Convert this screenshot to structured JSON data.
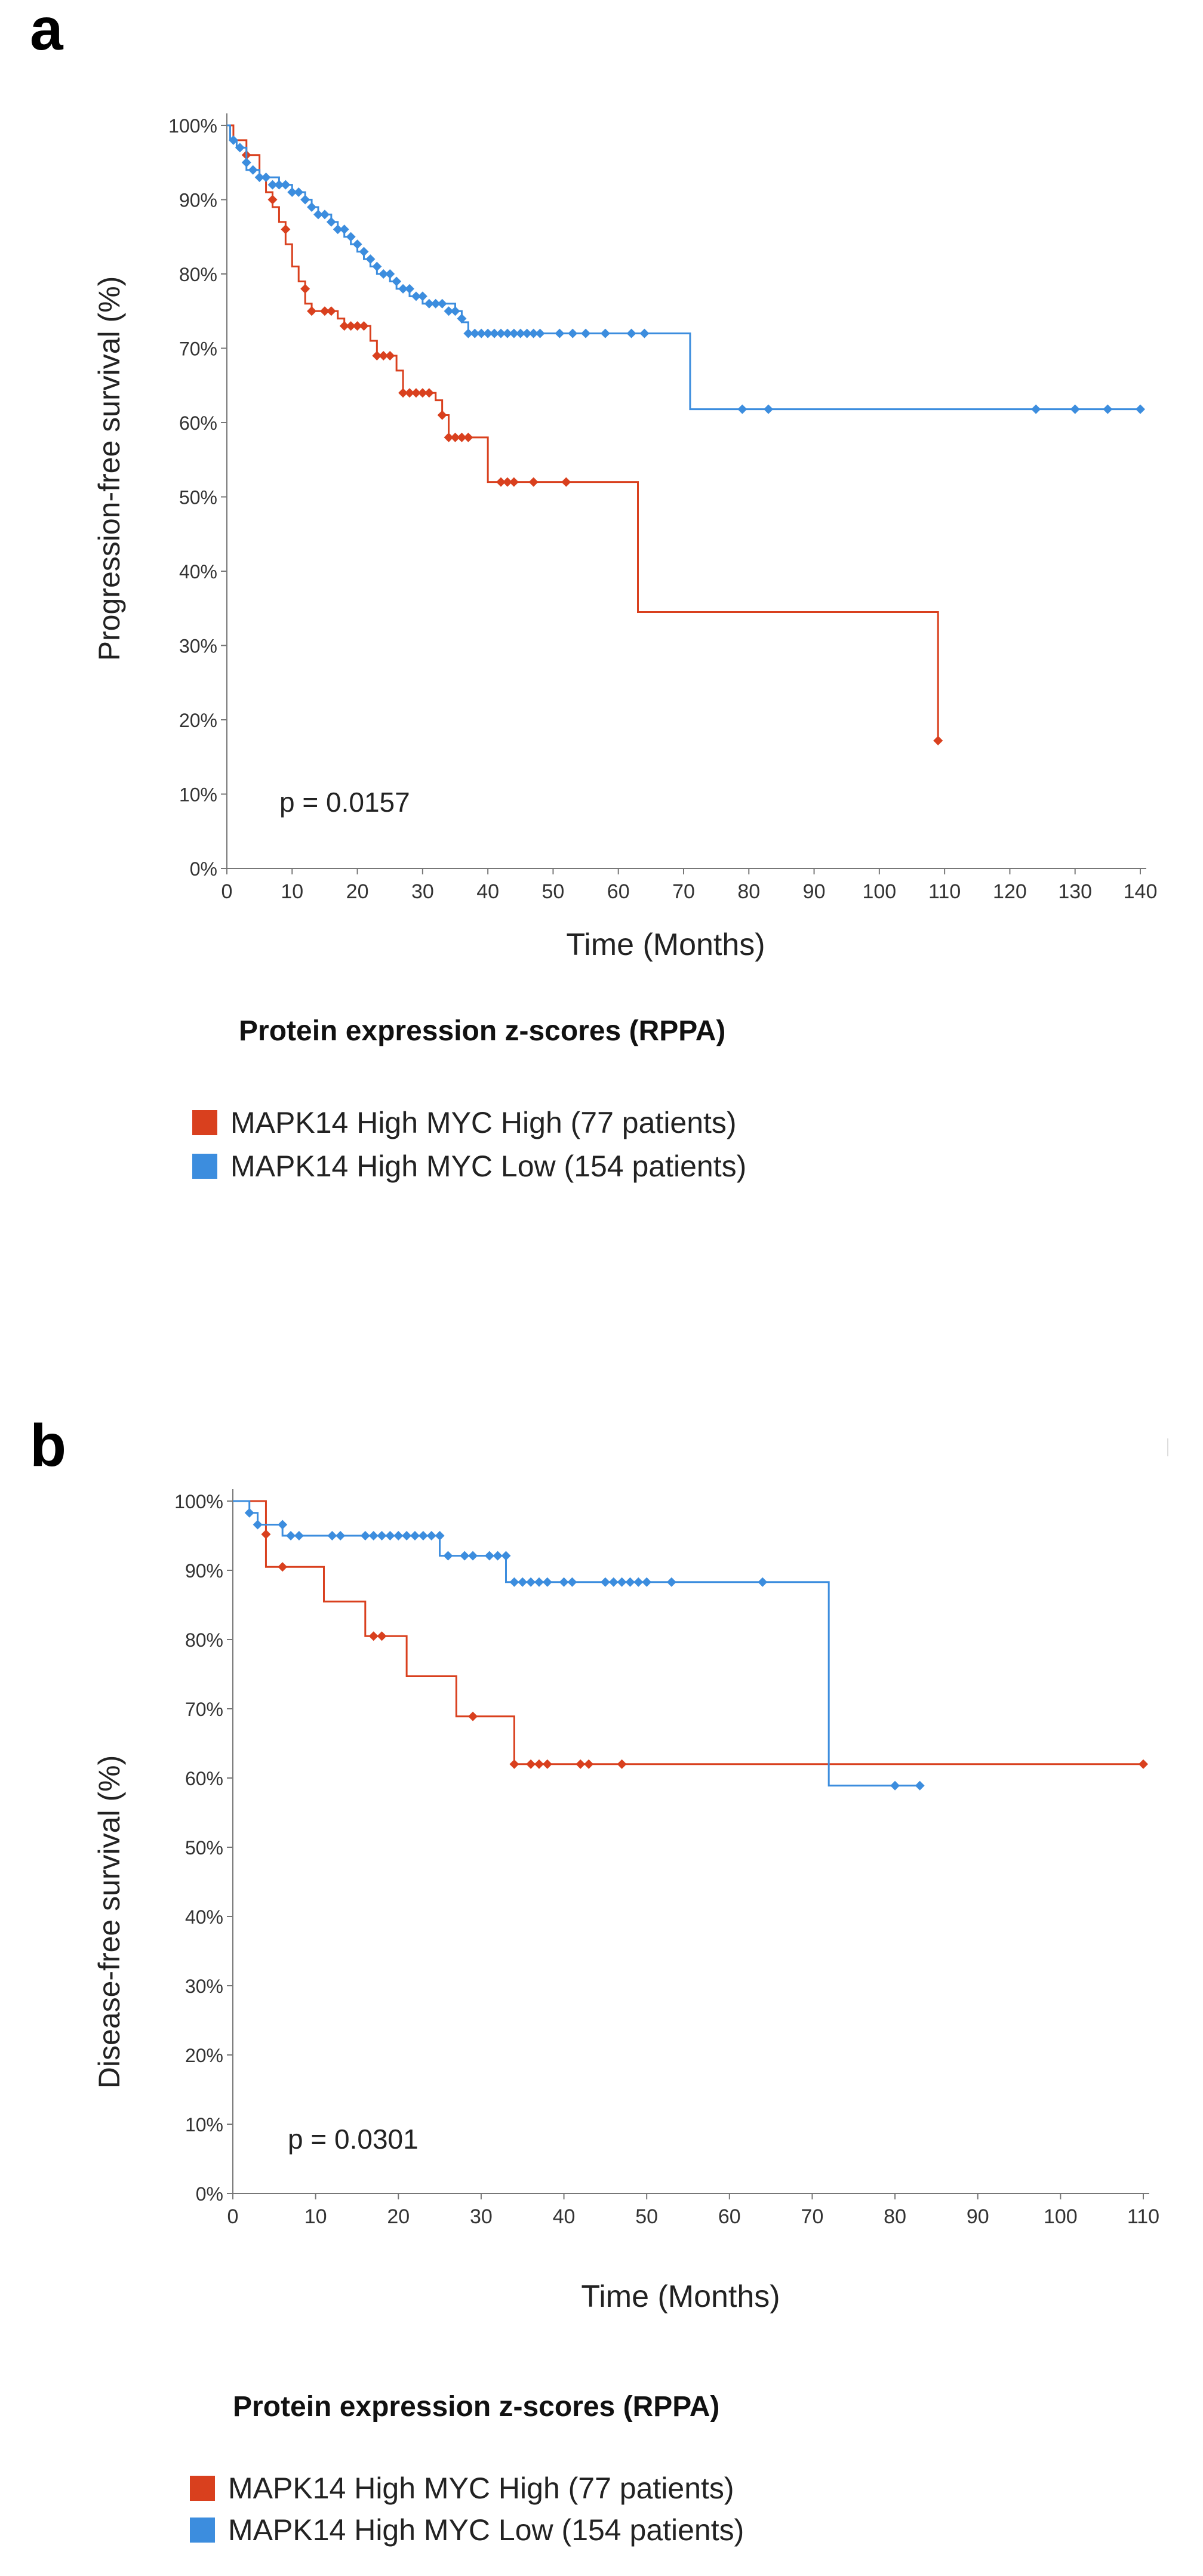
{
  "colors": {
    "high": "#D9401E",
    "low": "#3C8DDE",
    "axis": "#777777"
  },
  "panels": [
    {
      "letter": "a"
    },
    {
      "letter": "b"
    }
  ],
  "chart_data": [
    {
      "type": "line",
      "title": "",
      "xlabel": "Time (Months)",
      "ylabel": "Progression-free survival (%)",
      "xlim": [
        0,
        140
      ],
      "ylim": [
        0,
        100
      ],
      "xticks": [
        "0",
        "10",
        "20",
        "30",
        "40",
        "50",
        "60",
        "70",
        "80",
        "90",
        "100",
        "110",
        "120",
        "130",
        "140"
      ],
      "yticks": [
        "0%",
        "10%",
        "20%",
        "30%",
        "40%",
        "50%",
        "60%",
        "70%",
        "80%",
        "90%",
        "100%"
      ],
      "annotation": "p = 0.0157",
      "legend_title": "Protein expression z-scores (RPPA)",
      "series": [
        {
          "name": "MAPK14 High MYC High (77 patients)",
          "color": "#D9401E",
          "steps": [
            [
              0,
              100
            ],
            [
              1,
              98
            ],
            [
              3,
              96
            ],
            [
              5,
              93
            ],
            [
              6,
              91
            ],
            [
              7,
              89
            ],
            [
              8,
              87
            ],
            [
              9,
              84
            ],
            [
              10,
              81
            ],
            [
              11,
              79
            ],
            [
              12,
              76
            ],
            [
              13,
              75
            ],
            [
              17,
              74
            ],
            [
              18,
              73
            ],
            [
              22,
              71
            ],
            [
              23,
              69
            ],
            [
              26,
              67
            ],
            [
              27,
              64
            ],
            [
              32,
              63
            ],
            [
              33,
              61
            ],
            [
              34,
              58
            ],
            [
              38,
              58
            ],
            [
              40,
              52
            ],
            [
              63,
              52
            ],
            [
              63,
              34.5
            ],
            [
              109,
              34.5
            ],
            [
              109,
              17.2
            ]
          ],
          "censored": [
            [
              3,
              96
            ],
            [
              7,
              90
            ],
            [
              9,
              86
            ],
            [
              12,
              78
            ],
            [
              13,
              75
            ],
            [
              15,
              75
            ],
            [
              16,
              75
            ],
            [
              18,
              73
            ],
            [
              19,
              73
            ],
            [
              20,
              73
            ],
            [
              21,
              73
            ],
            [
              23,
              69
            ],
            [
              24,
              69
            ],
            [
              25,
              69
            ],
            [
              27,
              64
            ],
            [
              28,
              64
            ],
            [
              29,
              64
            ],
            [
              30,
              64
            ],
            [
              31,
              64
            ],
            [
              33,
              61
            ],
            [
              34,
              58
            ],
            [
              35,
              58
            ],
            [
              36,
              58
            ],
            [
              37,
              58
            ],
            [
              42,
              52
            ],
            [
              43,
              52
            ],
            [
              44,
              52
            ],
            [
              47,
              52
            ],
            [
              52,
              52
            ],
            [
              109,
              17.2
            ]
          ]
        },
        {
          "name": "MAPK14 High MYC Low (154 patients)",
          "color": "#3C8DDE",
          "steps": [
            [
              0,
              100
            ],
            [
              0.5,
              98
            ],
            [
              1.5,
              97
            ],
            [
              3,
              94
            ],
            [
              5,
              93
            ],
            [
              8,
              92
            ],
            [
              10,
              91
            ],
            [
              12,
              90
            ],
            [
              13,
              89
            ],
            [
              14,
              88
            ],
            [
              16,
              87
            ],
            [
              17,
              86
            ],
            [
              18,
              85
            ],
            [
              19,
              84
            ],
            [
              20,
              83
            ],
            [
              21,
              82
            ],
            [
              22,
              81
            ],
            [
              23,
              80
            ],
            [
              25,
              79
            ],
            [
              26,
              78
            ],
            [
              28,
              77
            ],
            [
              30,
              76
            ],
            [
              35,
              75
            ],
            [
              36,
              73.5
            ],
            [
              37,
              72
            ],
            [
              71,
              72
            ],
            [
              71,
              61.8
            ],
            [
              140,
              61.8
            ]
          ],
          "censored": [
            [
              1,
              98
            ],
            [
              2,
              97
            ],
            [
              3,
              95
            ],
            [
              4,
              94
            ],
            [
              5,
              93
            ],
            [
              6,
              93
            ],
            [
              7,
              92
            ],
            [
              8,
              92
            ],
            [
              9,
              92
            ],
            [
              10,
              91
            ],
            [
              11,
              91
            ],
            [
              12,
              90
            ],
            [
              13,
              89
            ],
            [
              14,
              88
            ],
            [
              15,
              88
            ],
            [
              16,
              87
            ],
            [
              17,
              86
            ],
            [
              18,
              86
            ],
            [
              19,
              85
            ],
            [
              20,
              84
            ],
            [
              21,
              83
            ],
            [
              22,
              82
            ],
            [
              23,
              81
            ],
            [
              24,
              80
            ],
            [
              25,
              80
            ],
            [
              26,
              79
            ],
            [
              27,
              78
            ],
            [
              28,
              78
            ],
            [
              29,
              77
            ],
            [
              30,
              77
            ],
            [
              31,
              76
            ],
            [
              32,
              76
            ],
            [
              33,
              76
            ],
            [
              34,
              75
            ],
            [
              35,
              75
            ],
            [
              36,
              74
            ],
            [
              37,
              72
            ],
            [
              38,
              72
            ],
            [
              39,
              72
            ],
            [
              40,
              72
            ],
            [
              41,
              72
            ],
            [
              42,
              72
            ],
            [
              43,
              72
            ],
            [
              44,
              72
            ],
            [
              45,
              72
            ],
            [
              46,
              72
            ],
            [
              47,
              72
            ],
            [
              48,
              72
            ],
            [
              51,
              72
            ],
            [
              53,
              72
            ],
            [
              55,
              72
            ],
            [
              58,
              72
            ],
            [
              62,
              72
            ],
            [
              64,
              72
            ],
            [
              79,
              61.8
            ],
            [
              83,
              61.8
            ],
            [
              124,
              61.8
            ],
            [
              130,
              61.8
            ],
            [
              135,
              61.8
            ],
            [
              140,
              61.8
            ]
          ]
        }
      ]
    },
    {
      "type": "line",
      "title": "",
      "xlabel": "Time (Months)",
      "ylabel": "Disease-free survival (%)",
      "xlim": [
        0,
        110
      ],
      "ylim": [
        0,
        100
      ],
      "xticks": [
        "0",
        "10",
        "20",
        "30",
        "40",
        "50",
        "60",
        "70",
        "80",
        "90",
        "100",
        "110"
      ],
      "yticks": [
        "0%",
        "10%",
        "20%",
        "30%",
        "40%",
        "50%",
        "60%",
        "70%",
        "80%",
        "90%",
        "100%"
      ],
      "annotation": "p = 0.0301",
      "legend_title": "Protein expression z-scores (RPPA)",
      "series": [
        {
          "name": "MAPK14 High MYC High (77 patients)",
          "color": "#D9401E",
          "steps": [
            [
              0,
              100
            ],
            [
              4,
              100
            ],
            [
              4,
              90.5
            ],
            [
              11,
              90.5
            ],
            [
              11,
              85.5
            ],
            [
              16,
              85.5
            ],
            [
              16,
              80.5
            ],
            [
              21,
              80.5
            ],
            [
              21,
              74.7
            ],
            [
              27,
              74.7
            ],
            [
              27,
              68.9
            ],
            [
              34,
              68.9
            ],
            [
              34,
              62
            ],
            [
              110,
              62
            ]
          ],
          "censored": [
            [
              4,
              95.2
            ],
            [
              6,
              90.5
            ],
            [
              17,
              80.5
            ],
            [
              18,
              80.5
            ],
            [
              29,
              68.9
            ],
            [
              34,
              62
            ],
            [
              36,
              62
            ],
            [
              37,
              62
            ],
            [
              38,
              62
            ],
            [
              42,
              62
            ],
            [
              43,
              62
            ],
            [
              47,
              62
            ],
            [
              110,
              62
            ]
          ]
        },
        {
          "name": "MAPK14 High MYC Low (154 patients)",
          "color": "#3C8DDE",
          "steps": [
            [
              0,
              100
            ],
            [
              2,
              100
            ],
            [
              2,
              98.3
            ],
            [
              3,
              98.3
            ],
            [
              3,
              96.6
            ],
            [
              6,
              96.6
            ],
            [
              6,
              95
            ],
            [
              25,
              95
            ],
            [
              25,
              92.1
            ],
            [
              33,
              92.1
            ],
            [
              33,
              88.3
            ],
            [
              72,
              88.3
            ],
            [
              72,
              58.9
            ],
            [
              83,
              58.9
            ]
          ],
          "censored": [
            [
              2,
              98.3
            ],
            [
              3,
              96.6
            ],
            [
              6,
              96.6
            ],
            [
              7,
              95
            ],
            [
              8,
              95
            ],
            [
              12,
              95
            ],
            [
              13,
              95
            ],
            [
              16,
              95
            ],
            [
              17,
              95
            ],
            [
              18,
              95
            ],
            [
              19,
              95
            ],
            [
              20,
              95
            ],
            [
              21,
              95
            ],
            [
              22,
              95
            ],
            [
              23,
              95
            ],
            [
              24,
              95
            ],
            [
              25,
              95
            ],
            [
              26,
              92.1
            ],
            [
              28,
              92.1
            ],
            [
              29,
              92.1
            ],
            [
              31,
              92.1
            ],
            [
              32,
              92.1
            ],
            [
              33,
              92.1
            ],
            [
              34,
              88.3
            ],
            [
              35,
              88.3
            ],
            [
              36,
              88.3
            ],
            [
              37,
              88.3
            ],
            [
              38,
              88.3
            ],
            [
              40,
              88.3
            ],
            [
              41,
              88.3
            ],
            [
              45,
              88.3
            ],
            [
              46,
              88.3
            ],
            [
              47,
              88.3
            ],
            [
              48,
              88.3
            ],
            [
              49,
              88.3
            ],
            [
              50,
              88.3
            ],
            [
              53,
              88.3
            ],
            [
              64,
              88.3
            ],
            [
              80,
              58.9
            ],
            [
              83,
              58.9
            ]
          ]
        }
      ]
    }
  ]
}
